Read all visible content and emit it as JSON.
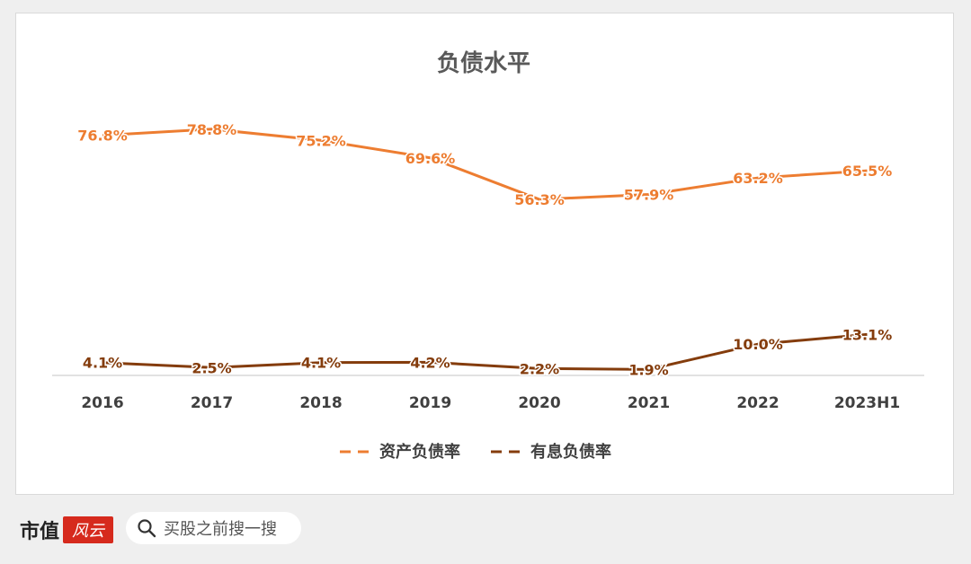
{
  "chart_data": {
    "type": "line",
    "title": "负债水平",
    "categories": [
      "2016",
      "2017",
      "2018",
      "2019",
      "2020",
      "2021",
      "2022",
      "2023H1"
    ],
    "series": [
      {
        "name": "资产负债率",
        "color": "#ed7d31",
        "values": [
          76.8,
          78.8,
          75.2,
          69.6,
          56.3,
          57.9,
          63.2,
          65.5
        ],
        "labels": [
          "76.8%",
          "78.8%",
          "75.2%",
          "69.6%",
          "56.3%",
          "57.9%",
          "63.2%",
          "65.5%"
        ]
      },
      {
        "name": "有息负债率",
        "color": "#843c0c",
        "values": [
          4.1,
          2.5,
          4.1,
          4.2,
          2.2,
          1.9,
          10.0,
          13.1
        ],
        "labels": [
          "4.1%",
          "2.5%",
          "4.1%",
          "4.2%",
          "2.2%",
          "1.9%",
          "10.0%",
          "13.1%"
        ]
      }
    ],
    "ylim": [
      0,
      100
    ],
    "grid": false,
    "legend_position": "bottom"
  },
  "brand": {
    "name": "市值",
    "logo_text": "风云"
  },
  "search": {
    "icon": "search-icon",
    "text": "买股之前搜一搜"
  }
}
